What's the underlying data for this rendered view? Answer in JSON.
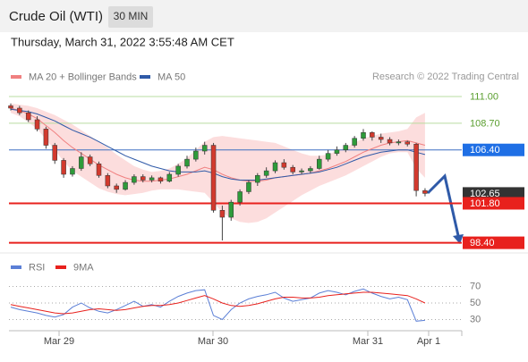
{
  "header": {
    "title": "Crude Oil (WTI)",
    "interval": "30 MIN",
    "datetime": "Thursday, March 31, 2022 3:55:48 AM CET",
    "credit": "Research © 2022 Trading Central"
  },
  "chart_data": [
    {
      "type": "candlestick",
      "ylim": [
        97.6,
        112.0
      ],
      "x_labels": [
        "Mar 29",
        "Mar 30",
        "Mar 31",
        "Apr 1"
      ],
      "up_color": "#2e9b3a",
      "down_color": "#d23a2e",
      "candles": [
        [
          110.2,
          110.4,
          109.8,
          110.0
        ],
        [
          110.0,
          110.2,
          109.4,
          109.6
        ],
        [
          109.6,
          109.8,
          108.8,
          109.0
        ],
        [
          109.0,
          109.3,
          108.0,
          108.2
        ],
        [
          108.2,
          108.4,
          106.5,
          106.8
        ],
        [
          106.8,
          107.0,
          105.2,
          105.5
        ],
        [
          105.5,
          105.7,
          104.0,
          104.3
        ],
        [
          104.3,
          105.0,
          104.1,
          104.8
        ],
        [
          104.8,
          106.2,
          104.6,
          105.8
        ],
        [
          105.8,
          106.0,
          105.0,
          105.2
        ],
        [
          105.2,
          105.4,
          104.0,
          104.2
        ],
        [
          104.2,
          104.4,
          103.1,
          103.3
        ],
        [
          103.3,
          103.5,
          102.7,
          103.0
        ],
        [
          103.0,
          103.8,
          102.9,
          103.6
        ],
        [
          103.6,
          104.3,
          103.4,
          104.1
        ],
        [
          104.1,
          104.3,
          103.6,
          103.8
        ],
        [
          103.8,
          104.2,
          103.6,
          104.0
        ],
        [
          104.0,
          104.1,
          103.5,
          103.7
        ],
        [
          103.7,
          104.5,
          103.6,
          104.3
        ],
        [
          104.3,
          105.2,
          104.1,
          105.0
        ],
        [
          105.0,
          105.9,
          104.8,
          105.6
        ],
        [
          105.6,
          106.6,
          105.4,
          106.3
        ],
        [
          106.3,
          107.1,
          106.0,
          106.8
        ],
        [
          106.8,
          107.0,
          101.0,
          101.2
        ],
        [
          101.2,
          101.6,
          98.6,
          100.6
        ],
        [
          100.6,
          102.1,
          100.3,
          101.9
        ],
        [
          101.9,
          103.0,
          101.6,
          102.8
        ],
        [
          102.8,
          103.8,
          102.6,
          103.6
        ],
        [
          103.6,
          104.4,
          103.3,
          104.2
        ],
        [
          104.2,
          104.9,
          104.0,
          104.6
        ],
        [
          104.6,
          105.5,
          104.4,
          105.3
        ],
        [
          105.3,
          105.6,
          104.7,
          104.9
        ],
        [
          104.9,
          105.1,
          104.3,
          104.5
        ],
        [
          104.5,
          104.8,
          104.3,
          104.6
        ],
        [
          104.6,
          105.0,
          104.4,
          104.8
        ],
        [
          104.8,
          105.9,
          104.7,
          105.6
        ],
        [
          105.6,
          106.4,
          105.4,
          106.1
        ],
        [
          106.1,
          106.7,
          105.9,
          106.4
        ],
        [
          106.4,
          107.0,
          106.2,
          106.8
        ],
        [
          106.8,
          107.6,
          106.6,
          107.4
        ],
        [
          107.4,
          108.2,
          107.2,
          107.9
        ],
        [
          107.9,
          108.0,
          107.2,
          107.5
        ],
        [
          107.5,
          107.8,
          107.0,
          107.3
        ],
        [
          107.3,
          107.5,
          106.8,
          107.0
        ],
        [
          107.0,
          107.3,
          106.8,
          107.1
        ],
        [
          107.1,
          107.2,
          106.7,
          106.9
        ],
        [
          106.9,
          107.0,
          102.4,
          102.9
        ],
        [
          102.9,
          103.1,
          102.4,
          102.65
        ]
      ],
      "bands": {
        "color": "#fbd5d5",
        "upper": [
          110.4,
          110.3,
          110.2,
          110.0,
          109.7,
          109.4,
          109.0,
          108.6,
          108.1,
          107.6,
          107.1,
          106.6,
          106.0,
          105.5,
          105.0,
          104.7,
          104.5,
          104.6,
          104.8,
          105.2,
          105.7,
          106.4,
          107.1,
          107.5,
          107.6,
          107.5,
          107.4,
          107.3,
          107.2,
          107.1,
          107.0,
          106.7,
          106.4,
          106.1,
          105.9,
          105.9,
          106.0,
          106.3,
          106.6,
          107.0,
          107.4,
          107.6,
          107.8,
          107.9,
          108.0,
          108.2,
          109.2,
          109.6
        ],
        "lower": [
          109.6,
          109.3,
          108.8,
          108.2,
          107.3,
          106.4,
          105.4,
          104.6,
          104.1,
          103.6,
          103.1,
          102.8,
          102.6,
          102.5,
          102.6,
          102.7,
          102.9,
          103.0,
          103.0,
          103.0,
          102.9,
          102.8,
          102.7,
          101.9,
          101.0,
          100.5,
          100.2,
          100.1,
          100.2,
          100.5,
          101.0,
          101.5,
          102.0,
          102.5,
          102.9,
          103.3,
          103.6,
          103.9,
          104.2,
          104.6,
          105.0,
          105.4,
          105.8,
          106.1,
          106.2,
          106.2,
          104.8,
          104.0
        ]
      },
      "series": [
        {
          "name": "MA 20 + Bollinger Bands",
          "color": "#f08080",
          "values": [
            110.0,
            109.8,
            109.5,
            109.1,
            108.5,
            107.9,
            107.2,
            106.6,
            106.1,
            105.6,
            105.1,
            104.7,
            104.3,
            104.0,
            103.8,
            103.7,
            103.7,
            103.8,
            103.9,
            104.1,
            104.3,
            104.6,
            104.9,
            104.7,
            104.3,
            104.0,
            103.8,
            103.7,
            103.7,
            103.8,
            104.0,
            104.1,
            104.2,
            104.3,
            104.4,
            104.6,
            104.8,
            105.1,
            105.4,
            105.8,
            106.2,
            106.5,
            106.8,
            107.0,
            107.1,
            107.2,
            107.0,
            106.8
          ]
        },
        {
          "name": "MA 50",
          "color": "#2f5aa8",
          "values": [
            109.9,
            109.8,
            109.7,
            109.5,
            109.2,
            108.9,
            108.5,
            108.1,
            107.8,
            107.5,
            107.1,
            106.7,
            106.3,
            105.9,
            105.6,
            105.3,
            105.0,
            104.8,
            104.6,
            104.5,
            104.5,
            104.5,
            104.6,
            104.4,
            104.1,
            103.9,
            103.8,
            103.8,
            103.8,
            103.9,
            104.0,
            104.1,
            104.2,
            104.3,
            104.4,
            104.5,
            104.7,
            104.9,
            105.2,
            105.5,
            105.8,
            106.0,
            106.2,
            106.3,
            106.4,
            106.4,
            106.2,
            106.0
          ]
        }
      ],
      "levels": [
        {
          "value": 111.0,
          "label": "111.00",
          "color": "#5a9e2f",
          "line_color": "#b9dca0",
          "box": false
        },
        {
          "value": 108.7,
          "label": "108.70",
          "color": "#5a9e2f",
          "line_color": "#b9dca0",
          "box": false
        },
        {
          "value": 106.4,
          "label": "106.40",
          "color": "#1f6fe5",
          "line_color": "#3d6fc2",
          "box": true
        },
        {
          "value": 102.65,
          "label": "102.65",
          "color": "#333333",
          "line_color": "none",
          "box": true
        },
        {
          "value": 101.8,
          "label": "101.80",
          "color": "#e8211d",
          "line_color": "#e8211d",
          "box": true
        },
        {
          "value": 98.4,
          "label": "98.40",
          "color": "#e8211d",
          "line_color": "#e8211d",
          "box": true
        }
      ]
    },
    {
      "type": "line",
      "ylim": [
        20,
        82
      ],
      "yticks": [
        70,
        50,
        30
      ],
      "grid": true,
      "series": [
        {
          "name": "RSI",
          "color": "#5b7fd6",
          "values": [
            45,
            42,
            40,
            38,
            35,
            33,
            36,
            45,
            50,
            44,
            40,
            38,
            42,
            47,
            52,
            46,
            48,
            45,
            52,
            58,
            62,
            65,
            66,
            35,
            30,
            42,
            50,
            55,
            58,
            60,
            63,
            56,
            52,
            54,
            56,
            62,
            65,
            63,
            60,
            64,
            67,
            62,
            58,
            55,
            57,
            54,
            28,
            29
          ]
        },
        {
          "name": "9MA",
          "color": "#e8211d",
          "values": [
            48,
            46,
            44,
            42,
            40,
            38,
            37,
            38,
            40,
            42,
            43,
            42,
            41,
            42,
            44,
            46,
            47,
            47,
            48,
            50,
            53,
            56,
            59,
            55,
            50,
            47,
            46,
            47,
            49,
            52,
            55,
            57,
            57,
            56,
            56,
            57,
            59,
            60,
            61,
            62,
            63,
            63,
            62,
            61,
            60,
            59,
            55,
            50
          ]
        }
      ]
    }
  ]
}
